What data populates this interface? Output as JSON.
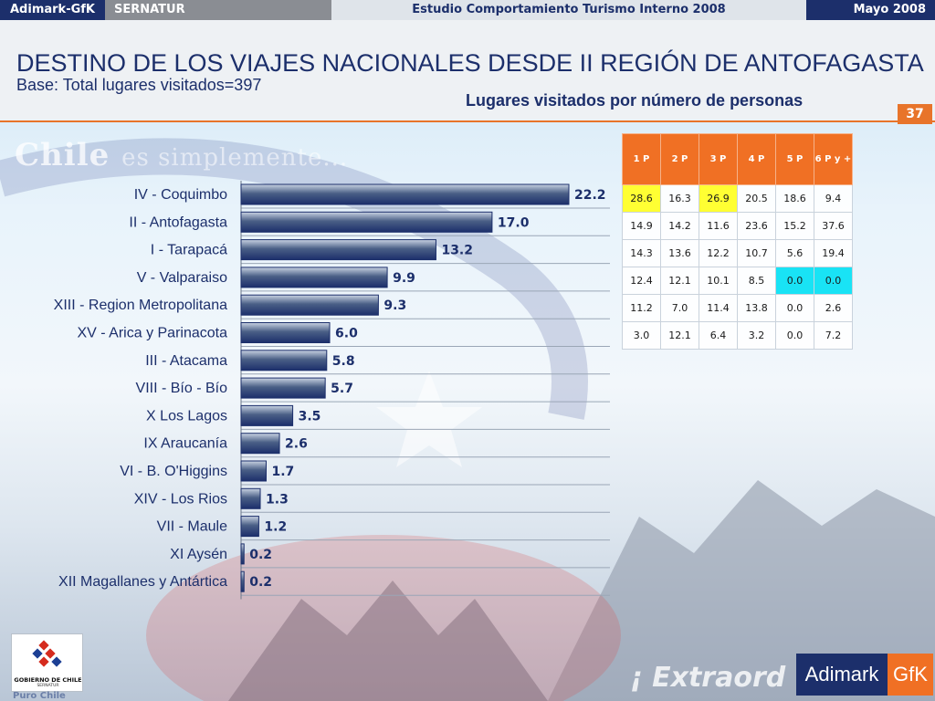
{
  "header": {
    "brand": "Adimark-GfK",
    "client": "SERNATUR",
    "study": "Estudio Comportamiento Turismo Interno 2008",
    "date": "Mayo 2008"
  },
  "title": "DESTINO DE LOS VIAJES NACIONALES DESDE II REGIÓN DE ANTOFAGASTA",
  "subtitle": "Base: Total lugares visitados=397",
  "chart_caption": "Lugares visitados por número de personas",
  "page_number": "37",
  "background": {
    "slogan_main": "Chile",
    "slogan_rest": "es simplemente..."
  },
  "colors": {
    "bar": "#4a5f86",
    "bar_highlight": "#c8d2e2",
    "table_header": "#f07024",
    "highlight_yellow": "#ffff33",
    "highlight_cyan": "#19e3f5",
    "accent_orange": "#e8742a",
    "navy": "#1c2f6b"
  },
  "chart_data": {
    "type": "bar",
    "orientation": "horizontal",
    "title": "",
    "xlabel": "",
    "ylabel": "",
    "xlim": [
      0,
      22.2
    ],
    "grid": true,
    "categories": [
      "IV - Coquimbo",
      "II - Antofagasta",
      "I - Tarapacá",
      "V - Valparaiso",
      "XIII - Region Metropolitana",
      "XV - Arica y Parinacota",
      "III - Atacama",
      "VIII - Bío - Bío",
      "X Los Lagos",
      "IX Araucanía",
      "VI - B. O'Higgins",
      "XIV - Los Rios",
      "VII - Maule",
      "XI Aysén",
      "XII Magallanes y Antártica"
    ],
    "values": [
      22.2,
      17.0,
      13.2,
      9.9,
      9.3,
      6.0,
      5.8,
      5.7,
      3.5,
      2.6,
      1.7,
      1.3,
      1.2,
      0.2,
      0.2
    ],
    "value_labels": [
      "22.2",
      "17.0",
      "13.2",
      "9.9",
      "9.3",
      "6.0",
      "5.8",
      "5.7",
      "3.5",
      "2.6",
      "1.7",
      "1.3",
      "1.2",
      "0.2",
      "0.2"
    ]
  },
  "table": {
    "columns": [
      "1 P",
      "2 P",
      "3 P",
      "4 P",
      "5 P",
      "6 P y +"
    ],
    "rows": [
      [
        {
          "v": "28.6",
          "hl": "yellow"
        },
        {
          "v": "16.3"
        },
        {
          "v": "26.9",
          "hl": "yellow"
        },
        {
          "v": "20.5"
        },
        {
          "v": "18.6"
        },
        {
          "v": "9.4"
        }
      ],
      [
        {
          "v": "14.9"
        },
        {
          "v": "14.2"
        },
        {
          "v": "11.6"
        },
        {
          "v": "23.6"
        },
        {
          "v": "15.2"
        },
        {
          "v": "37.6"
        }
      ],
      [
        {
          "v": "14.3"
        },
        {
          "v": "13.6"
        },
        {
          "v": "12.2"
        },
        {
          "v": "10.7"
        },
        {
          "v": "5.6"
        },
        {
          "v": "19.4"
        }
      ],
      [
        {
          "v": "12.4"
        },
        {
          "v": "12.1"
        },
        {
          "v": "10.1"
        },
        {
          "v": "8.5"
        },
        {
          "v": "0.0",
          "hl": "cyan"
        },
        {
          "v": "0.0",
          "hl": "cyan"
        }
      ],
      [
        {
          "v": "11.2"
        },
        {
          "v": "7.0"
        },
        {
          "v": "11.4"
        },
        {
          "v": "13.8"
        },
        {
          "v": "0.0"
        },
        {
          "v": "2.6"
        }
      ],
      [
        {
          "v": "3.0"
        },
        {
          "v": "12.1"
        },
        {
          "v": "6.4"
        },
        {
          "v": "3.2"
        },
        {
          "v": "0.0"
        },
        {
          "v": "7.2"
        }
      ]
    ]
  },
  "footer": {
    "gov_logo_text": "GOBIERNO DE CHILE",
    "gov_logo_sub": "SERNATUR",
    "tagline": "Puro Chile",
    "watermark": "¡ Extraord",
    "brand_logo_left": "Adimark",
    "brand_logo_right": "GfK"
  }
}
